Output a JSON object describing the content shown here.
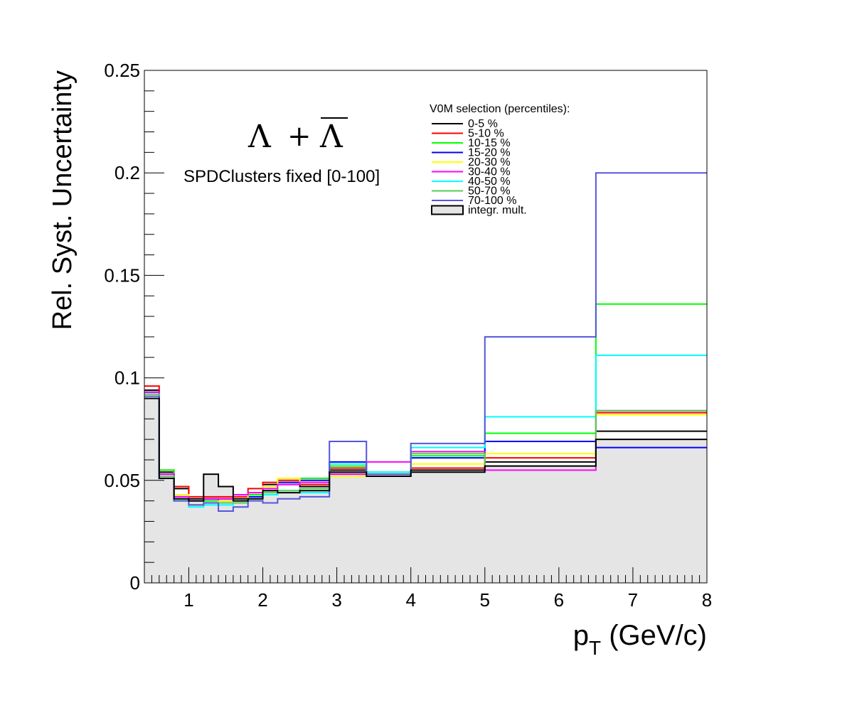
{
  "chart_data": {
    "type": "line",
    "step": true,
    "title": "",
    "xlabel": "p",
    "xlabel_sub": "T",
    "xlabel_unit": " (GeV/c)",
    "ylabel": "Rel. Syst. Uncertainty",
    "xlim": [
      0.4,
      8.0
    ],
    "ylim": [
      0,
      0.25
    ],
    "x_ticks": [
      "1",
      "2",
      "3",
      "4",
      "5",
      "6",
      "7",
      "8"
    ],
    "y_ticks": [
      "0",
      "0.05",
      "0.1",
      "0.15",
      "0.2",
      "0.25"
    ],
    "grid": false,
    "bin_edges": [
      0.4,
      0.6,
      0.8,
      1.0,
      1.2,
      1.4,
      1.6,
      1.8,
      2.0,
      2.2,
      2.5,
      2.9,
      3.4,
      4.0,
      5.0,
      6.5,
      8.0
    ],
    "annotations": {
      "particle_lambda": "Λ",
      "particle_plus": "+",
      "particle_antilambda": "Λ",
      "estimator": "SPDClusters fixed [0-100]"
    },
    "legend": {
      "title": "V0M selection (percentiles):",
      "position": "top-right"
    },
    "series": [
      {
        "name": "0-5 %",
        "color": "#000000",
        "values": [
          0.094,
          0.054,
          0.046,
          0.041,
          0.041,
          0.041,
          0.041,
          0.044,
          0.048,
          0.048,
          0.047,
          0.055,
          0.052,
          0.054,
          0.059,
          0.074
        ]
      },
      {
        "name": "5-10 %",
        "color": "#ff0000",
        "values": [
          0.096,
          0.055,
          0.047,
          0.042,
          0.042,
          0.042,
          0.042,
          0.046,
          0.049,
          0.05,
          0.048,
          0.056,
          0.053,
          0.056,
          0.061,
          0.083
        ]
      },
      {
        "name": "10-15 %",
        "color": "#00ff00",
        "values": [
          0.093,
          0.055,
          0.041,
          0.038,
          0.04,
          0.039,
          0.039,
          0.043,
          0.045,
          0.049,
          0.051,
          0.057,
          0.054,
          0.062,
          0.073,
          0.136
        ]
      },
      {
        "name": "15-20 %",
        "color": "#0000ff",
        "values": [
          0.093,
          0.053,
          0.042,
          0.04,
          0.041,
          0.04,
          0.04,
          0.042,
          0.047,
          0.049,
          0.05,
          0.059,
          0.053,
          0.061,
          0.069,
          0.066
        ]
      },
      {
        "name": "20-30 %",
        "color": "#ffff00",
        "values": [
          0.092,
          0.052,
          0.043,
          0.038,
          0.039,
          0.04,
          0.04,
          0.044,
          0.047,
          0.051,
          0.049,
          0.052,
          0.053,
          0.058,
          0.063,
          0.082
        ]
      },
      {
        "name": "30-40 %",
        "color": "#ff00ff",
        "values": [
          0.093,
          0.053,
          0.042,
          0.04,
          0.041,
          0.041,
          0.043,
          0.044,
          0.046,
          0.048,
          0.049,
          0.053,
          0.059,
          0.064,
          0.055,
          0.084
        ]
      },
      {
        "name": "40-50 %",
        "color": "#00ffff",
        "values": [
          0.092,
          0.052,
          0.04,
          0.037,
          0.038,
          0.038,
          0.039,
          0.041,
          0.043,
          0.045,
          0.044,
          0.058,
          0.054,
          0.066,
          0.081,
          0.111
        ]
      },
      {
        "name": "50-70 %",
        "color": "#55cc55",
        "values": [
          0.092,
          0.052,
          0.04,
          0.038,
          0.039,
          0.039,
          0.039,
          0.041,
          0.044,
          0.045,
          0.046,
          0.054,
          0.053,
          0.063,
          0.057,
          0.084
        ]
      },
      {
        "name": "70-100 %",
        "color": "#5555dd",
        "values": [
          0.091,
          0.051,
          0.04,
          0.038,
          0.039,
          0.035,
          0.037,
          0.04,
          0.039,
          0.041,
          0.042,
          0.069,
          0.053,
          0.068,
          0.12,
          0.2
        ]
      },
      {
        "name": "integr. mult.",
        "color": "#000000",
        "fill": "#e5e5e5",
        "filled": true,
        "values": [
          0.09,
          0.051,
          0.041,
          0.04,
          0.053,
          0.047,
          0.04,
          0.041,
          0.045,
          0.044,
          0.045,
          0.054,
          0.052,
          0.055,
          0.057,
          0.07
        ]
      }
    ]
  }
}
